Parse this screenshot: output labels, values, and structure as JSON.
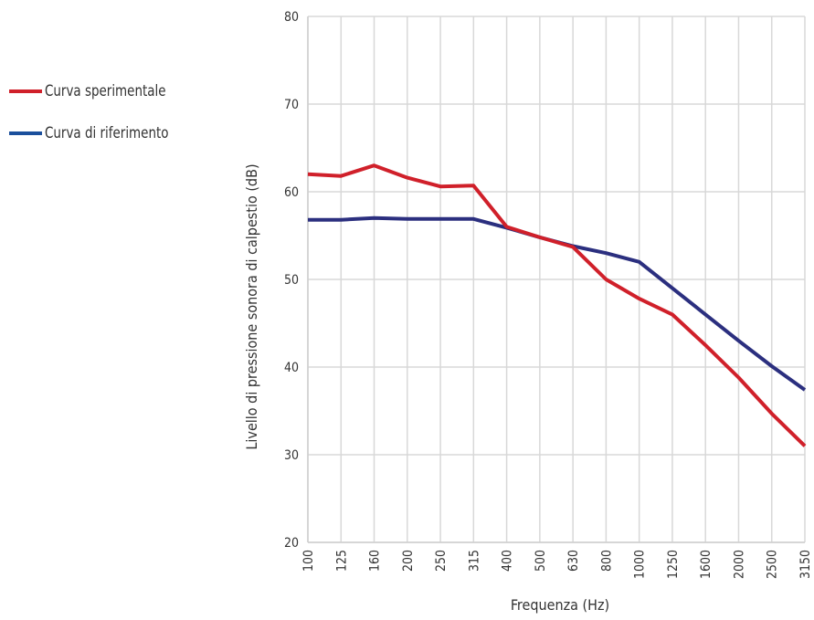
{
  "chart_data": {
    "type": "line",
    "title": "",
    "xlabel": "Frequenza (Hz)",
    "ylabel": "Livello di pressione sonora di calpestio (dB)",
    "ylim": [
      20,
      80
    ],
    "yticks": [
      20,
      30,
      40,
      50,
      60,
      70,
      80
    ],
    "categories": [
      "100",
      "125",
      "160",
      "200",
      "250",
      "315",
      "400",
      "500",
      "630",
      "800",
      "1000",
      "1250",
      "1600",
      "2000",
      "2500",
      "3150"
    ],
    "grid": true,
    "legend_position": "left",
    "series": [
      {
        "name": "Curva sperimentale",
        "color": "#d0202a",
        "values": [
          62.0,
          61.8,
          63.0,
          61.6,
          60.6,
          60.7,
          56.0,
          54.8,
          53.7,
          50.0,
          47.8,
          46.0,
          42.5,
          38.8,
          34.7,
          31.0
        ]
      },
      {
        "name": "Curva di riferimento",
        "color": "#2b2f7f",
        "legend_color": "#1b4f9c",
        "values": [
          56.8,
          56.8,
          57.0,
          56.9,
          56.9,
          56.9,
          55.9,
          54.8,
          53.8,
          53.0,
          52.0,
          49.0,
          46.0,
          43.0,
          40.1,
          37.4
        ]
      }
    ]
  }
}
